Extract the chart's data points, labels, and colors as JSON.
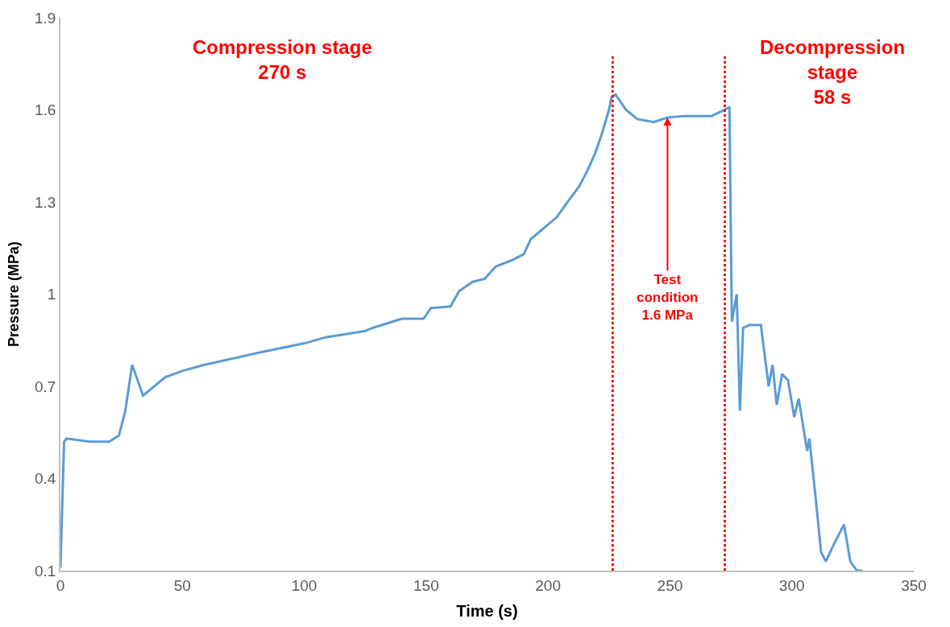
{
  "chart_data": {
    "type": "line",
    "xlabel": "Time (s)",
    "ylabel": "Pressure (MPa)",
    "annotations": [
      "Compression stage\n270 s",
      "Decompression\nstage\n58 s",
      {
        "text": "Test\ncondition\n1.6 MPa",
        "x": 249,
        "y": 1.575
      }
    ],
    "series": [
      {
        "color": "#5b9bd5",
        "x": [
          0,
          1.5,
          2.5,
          12,
          20,
          24,
          26.6,
          29.4,
          33.9,
          43,
          50,
          59,
          81.6,
          100,
          109,
          125,
          128,
          140,
          148.9,
          152,
          160,
          163.5,
          169,
          174,
          178.5,
          185,
          190,
          193,
          199,
          203.5,
          208,
          212.7,
          216,
          219.4,
          222,
          225,
          226,
          227.7,
          232,
          236.6,
          243.4,
          249,
          255.7,
          267,
          272.4,
          274.4,
          275.4,
          277.4,
          278.7,
          280,
          282.7,
          287.3,
          290.5,
          292.1,
          293.8,
          296,
          298.4,
          301,
          302.8,
          306.3,
          307.2,
          309.6,
          312,
          313.9,
          317.5,
          321.4,
          324,
          326.7,
          329
        ],
        "values": [
          0.11,
          0.52,
          0.53,
          0.52,
          0.52,
          0.54,
          0.62,
          0.77,
          0.67,
          0.73,
          0.75,
          0.77,
          0.81,
          0.84,
          0.86,
          0.88,
          0.89,
          0.92,
          0.92,
          0.955,
          0.96,
          1.01,
          1.04,
          1.05,
          1.09,
          1.11,
          1.13,
          1.18,
          1.22,
          1.25,
          1.3,
          1.35,
          1.4,
          1.46,
          1.52,
          1.6,
          1.64,
          1.65,
          1.6,
          1.57,
          1.56,
          1.575,
          1.58,
          1.58,
          1.6,
          1.61,
          0.91,
          1.0,
          0.62,
          0.89,
          0.9,
          0.9,
          0.7,
          0.77,
          0.64,
          0.74,
          0.72,
          0.6,
          0.66,
          0.49,
          0.53,
          0.35,
          0.16,
          0.13,
          0.19,
          0.25,
          0.13,
          0.1,
          0.1
        ]
      }
    ],
    "xlim": [
      0,
      350
    ],
    "xticks": [
      0,
      50,
      100,
      150,
      200,
      250,
      300,
      350
    ],
    "ylim": [
      0.1,
      1.9
    ],
    "yticks": [
      0.1,
      0.4,
      0.7,
      1,
      1.3,
      1.6,
      1.9
    ],
    "ref_lines": [
      {
        "axis": "x",
        "value": 226.5,
        "color": "#ff0000",
        "line_style": "dotted"
      },
      {
        "axis": "x",
        "value": 272.5,
        "color": "#ff0000",
        "line_style": "dotted"
      }
    ],
    "grid": false,
    "marker": "none",
    "line_style": "solid"
  }
}
